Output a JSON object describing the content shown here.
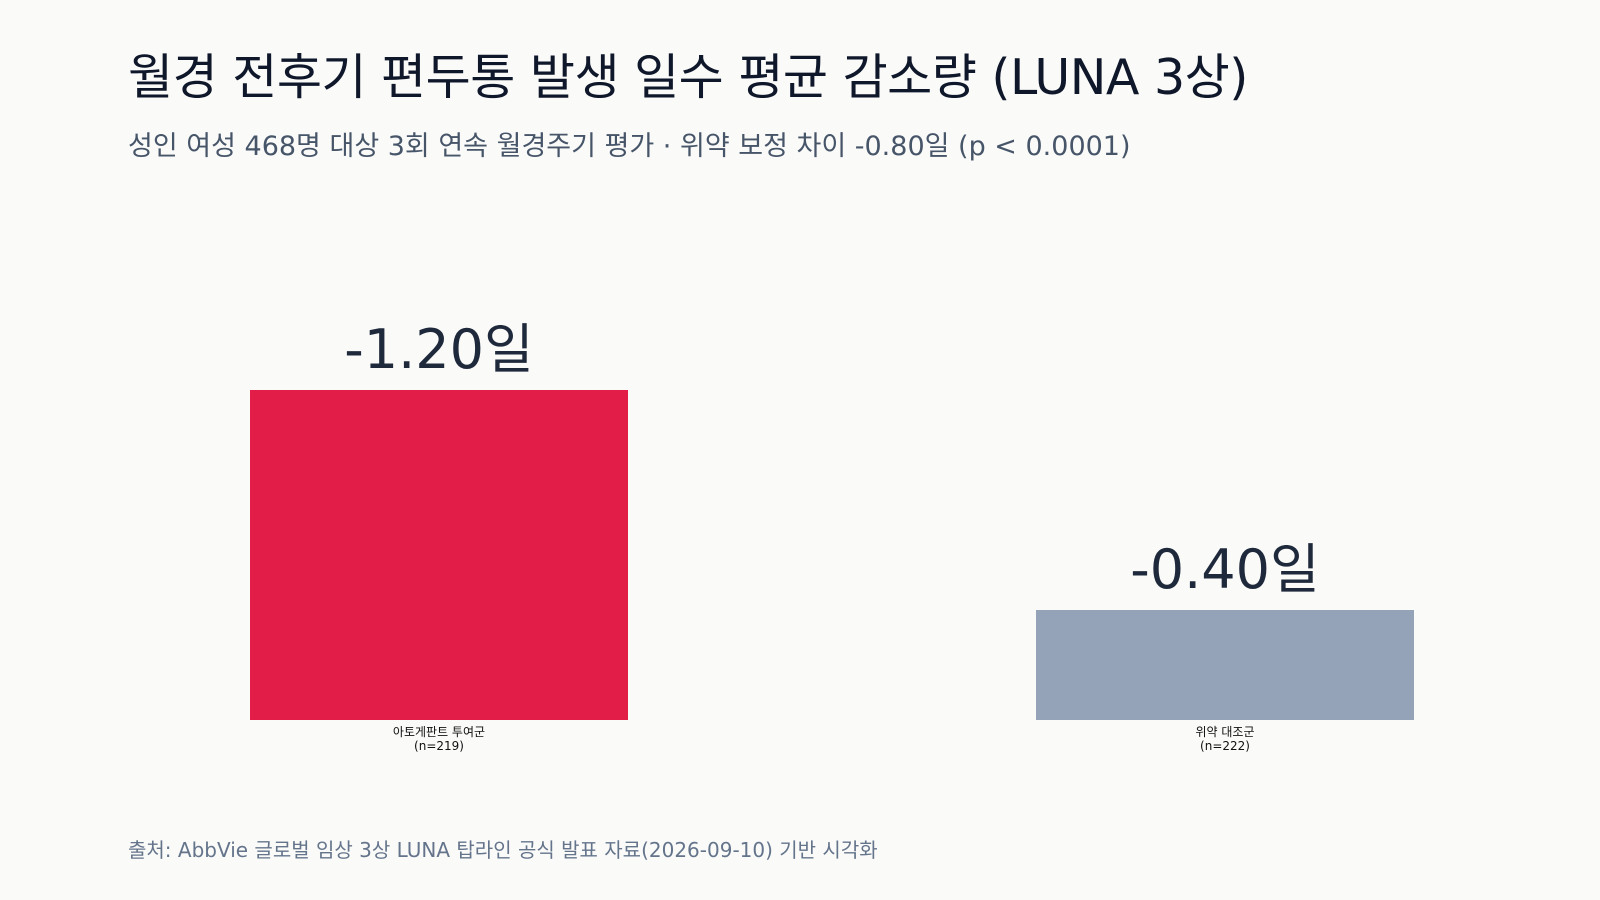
{
  "header": {
    "title": "월경 전후기 편두통 발생 일수 평균 감소량 (LUNA 3상)",
    "subtitle": "성인 여성 468명 대상 3회 연속 월경주기 평가 · 위약 보정 차이 -0.80일 (p < 0.0001)"
  },
  "chart_data": {
    "type": "bar",
    "title": "월경 전후기 편두통 발생 일수 평균 감소량 (LUNA 3상)",
    "subtitle": "성인 여성 468명 대상 3회 연속 월경주기 평가 · 위약 보정 차이 -0.80일 (p < 0.0001)",
    "categories": [
      [
        "아토게판트 투여군",
        "(n=219)"
      ],
      [
        "위약 대조군",
        "(n=222)"
      ]
    ],
    "values": [
      -1.2,
      -0.4
    ],
    "value_labels": [
      "-1.20일",
      "-0.40일"
    ],
    "colors": [
      "#e11d48",
      "#94a3b8"
    ],
    "xlabel": "",
    "ylabel": "",
    "ylim": [
      -1.2,
      0
    ],
    "grid": false,
    "legend": "none"
  },
  "footer": {
    "source": "출처: AbbVie 글로벌 임상 3상 LUNA 탑라인 공식 발표 자료(2026-09-10) 기반 시각화"
  }
}
